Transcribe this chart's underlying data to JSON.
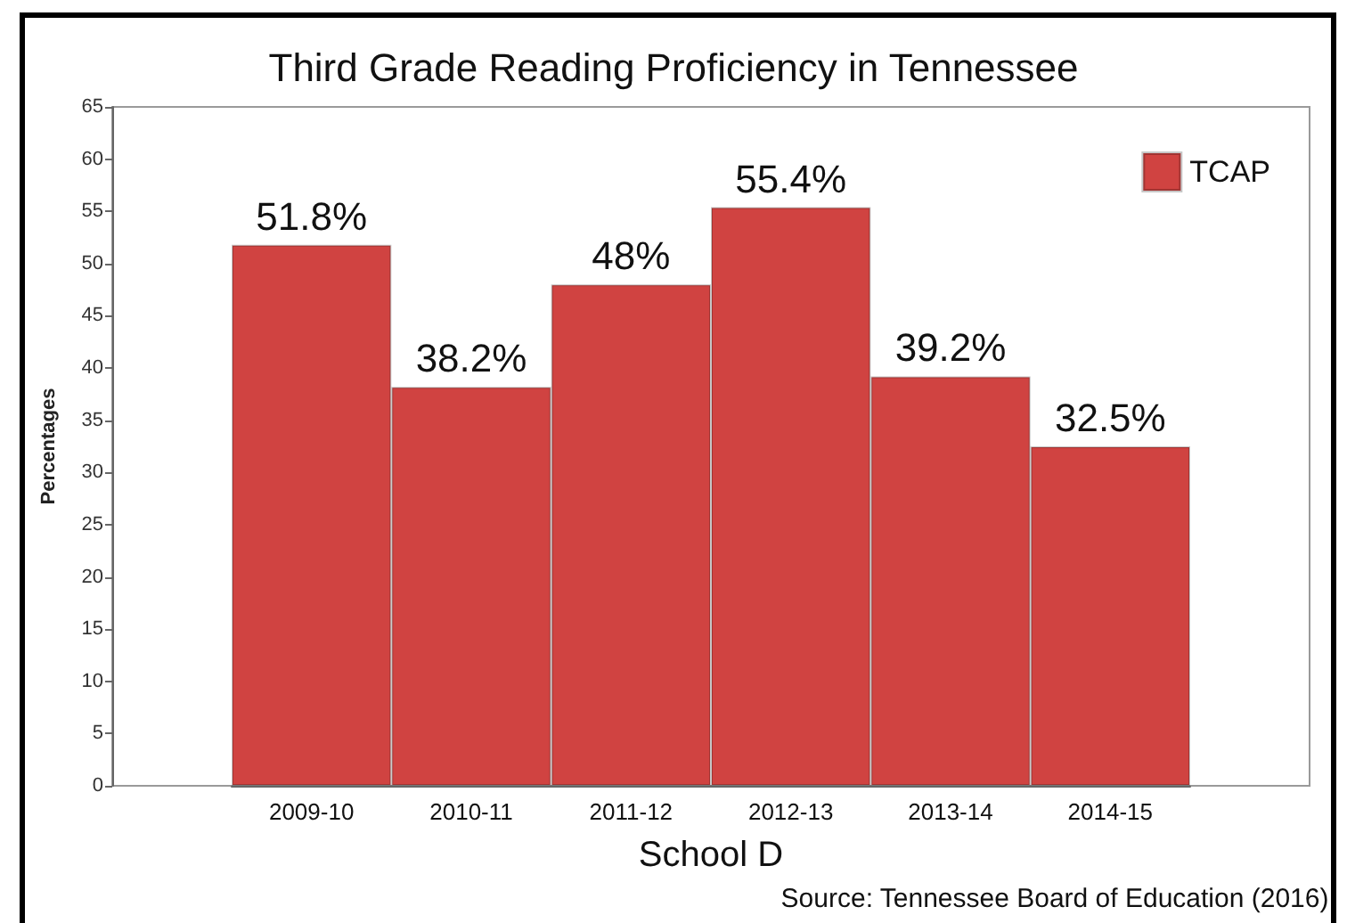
{
  "chart_data": {
    "type": "bar",
    "title": "Third Grade Reading Proficiency in Tennessee",
    "xlabel": "School D",
    "ylabel": "Percentages",
    "annotations": [
      "Source: Tennessee Board of Education (2016)"
    ],
    "categories": [
      "2009-10",
      "2010-11",
      "2011-12",
      "2012-13",
      "2013-14",
      "2014-15"
    ],
    "series": [
      {
        "name": "TCAP",
        "color": "#d04341",
        "values": [
          51.8,
          38.2,
          48,
          55.4,
          39.2,
          32.5
        ],
        "value_labels": [
          "51.8%",
          "38.2%",
          "48%",
          "55.4%",
          "39.2%",
          "32.5%"
        ]
      }
    ],
    "ylim": [
      0,
      65
    ],
    "yticks": [
      0,
      5,
      10,
      15,
      20,
      25,
      30,
      35,
      40,
      45,
      50,
      55,
      60,
      65
    ],
    "grid": false,
    "legend": "top right"
  }
}
